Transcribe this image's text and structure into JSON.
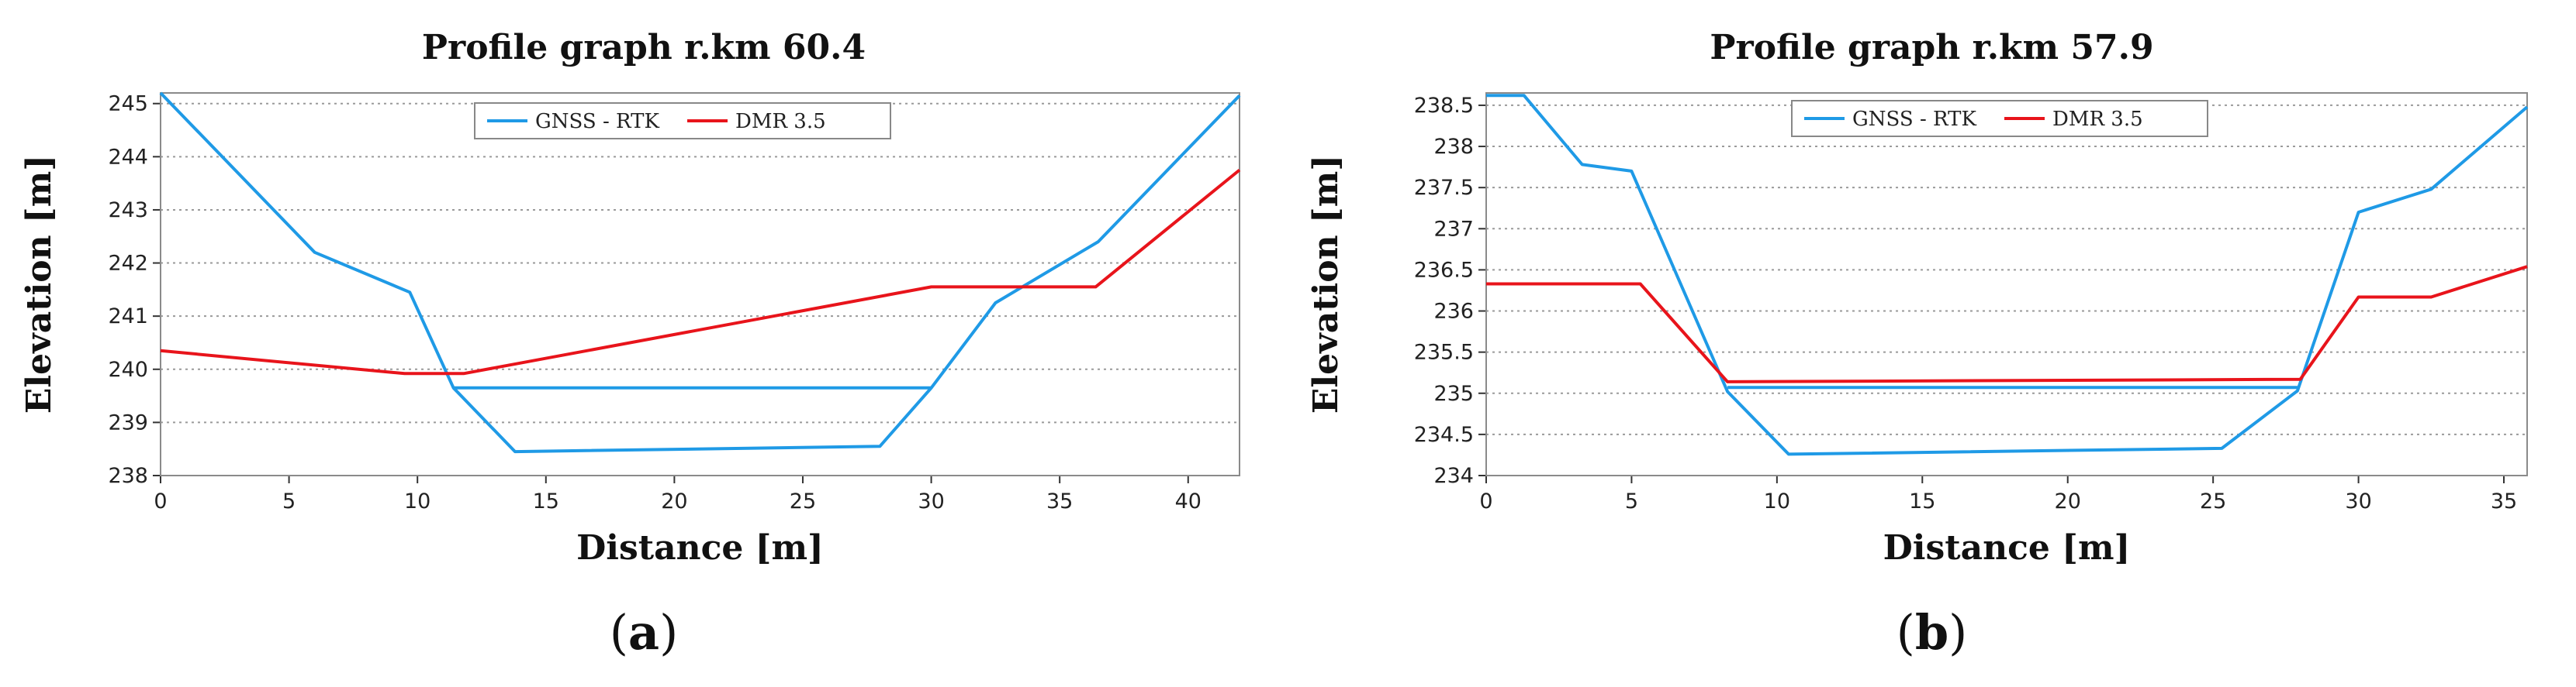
{
  "panels": [
    {
      "label_letter": "a"
    },
    {
      "label_letter": "b"
    }
  ],
  "chart_data": [
    {
      "type": "line",
      "title": "Profile graph r.km 60.4",
      "xlabel": "Distance [m]",
      "ylabel": "Elevation [m]",
      "xlim": [
        0,
        42
      ],
      "ylim": [
        238,
        245.2
      ],
      "xticks": [
        0,
        5,
        10,
        15,
        20,
        25,
        30,
        35,
        40
      ],
      "yticks": [
        238,
        239,
        240,
        241,
        242,
        243,
        244,
        245
      ],
      "ytick_labels": [
        "238",
        "239",
        "240",
        "241",
        "242",
        "243",
        "244",
        "245"
      ],
      "grid": "horizontal dotted",
      "legend_position": "top-center",
      "series": [
        {
          "name": "GNSS - RTK",
          "color": "#1f9ae6",
          "x": [
            0,
            6,
            9.7,
            11.4,
            13.8,
            28,
            30,
            32.5,
            36.5,
            42
          ],
          "y": [
            245.2,
            242.2,
            241.45,
            239.65,
            238.45,
            238.55,
            239.65,
            241.25,
            242.4,
            245.15
          ]
        },
        {
          "name": "DMR 3.5",
          "color": "#e8141b",
          "x": [
            0,
            9.5,
            11.8,
            30,
            36.4,
            42
          ],
          "y": [
            240.35,
            239.92,
            239.92,
            241.55,
            241.55,
            243.75
          ]
        }
      ],
      "extra_lines": [
        {
          "color": "#1f9ae6",
          "x": [
            11.4,
            30
          ],
          "y": [
            239.65,
            239.65
          ]
        }
      ]
    },
    {
      "type": "line",
      "title": "Profile graph r.km 57.9",
      "xlabel": "Distance [m]",
      "ylabel": "Elevation [m]",
      "xlim": [
        0,
        35.8
      ],
      "ylim": [
        234,
        238.65
      ],
      "xticks": [
        0,
        5,
        10,
        15,
        20,
        25,
        30,
        35
      ],
      "yticks": [
        234,
        234.5,
        235,
        235.5,
        236,
        236.5,
        237,
        237.5,
        238,
        238.5
      ],
      "ytick_labels": [
        "234",
        "234.5",
        "235",
        "235.5",
        "236",
        "236.5",
        "237",
        "237.5",
        "238",
        "238.5"
      ],
      "grid": "horizontal dotted",
      "legend_position": "top-center",
      "series": [
        {
          "name": "GNSS - RTK",
          "color": "#1f9ae6",
          "x": [
            0,
            1.3,
            3.3,
            5,
            8.3,
            10.4,
            25.3,
            27.9,
            30,
            32.5,
            35.8
          ],
          "y": [
            238.62,
            238.62,
            237.78,
            237.7,
            235.02,
            234.26,
            234.33,
            235.03,
            237.2,
            237.48,
            238.48
          ]
        },
        {
          "name": "DMR 3.5",
          "color": "#e8141b",
          "x": [
            0,
            5.3,
            8.3,
            28,
            30,
            32.5,
            35.8
          ],
          "y": [
            236.33,
            236.33,
            235.14,
            235.17,
            236.17,
            236.17,
            236.54
          ]
        }
      ],
      "extra_lines": [
        {
          "color": "#1f9ae6",
          "x": [
            8.3,
            27.9
          ],
          "y": [
            235.07,
            235.07
          ]
        }
      ]
    }
  ]
}
